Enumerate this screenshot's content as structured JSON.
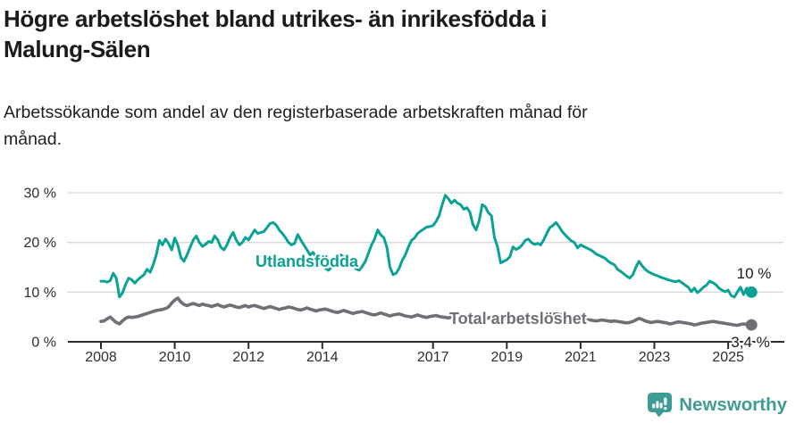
{
  "title": {
    "line1": "Högre arbetslöshet bland utrikes- än inrikesfödda i",
    "line2": "Malung-Sälen"
  },
  "subtitle": {
    "line1": "Arbetssökande som andel av den registerbaserade arbetskraften månad för",
    "line2": "månad."
  },
  "chart_data": {
    "type": "line",
    "x_unit": "month",
    "x_start_year": 2008,
    "x_end_label_period": "2025 (ends ~Aug)",
    "x_tick_years": [
      2008,
      2010,
      2012,
      2014,
      2017,
      2019,
      2021,
      2023,
      2025
    ],
    "x_tick_labels": [
      "2008",
      "2010",
      "2012",
      "2014",
      "2017",
      "2019",
      "2021",
      "2023",
      "2025"
    ],
    "y_ticks": [
      0,
      10,
      20,
      30
    ],
    "y_tick_labels": [
      "0 %",
      "10 %",
      "20 %",
      "30 %"
    ],
    "ylim": [
      0,
      31
    ],
    "grid": "horizontal",
    "legend_position": "inline-labels",
    "series": [
      {
        "name": "Utlandsfödda",
        "color": "#0ba296",
        "end_label": "10 %",
        "values": [
          12.2,
          12.2,
          12.0,
          12.3,
          13.8,
          12.8,
          9.0,
          9.8,
          11.5,
          12.8,
          12.5,
          11.8,
          12.5,
          13.0,
          13.5,
          14.6,
          14.0,
          15.5,
          17.5,
          20.4,
          19.5,
          20.7,
          19.8,
          18.5,
          20.9,
          19.5,
          17.0,
          16.2,
          17.5,
          19.0,
          20.5,
          21.3,
          20.0,
          19.2,
          19.6,
          20.2,
          20.0,
          21.3,
          20.5,
          19.0,
          18.5,
          19.5,
          21.0,
          22.0,
          20.5,
          19.5,
          20.0,
          21.0,
          20.5,
          21.5,
          22.5,
          21.8,
          22.0,
          22.2,
          23.0,
          23.8,
          24.0,
          23.5,
          22.5,
          21.8,
          21.0,
          20.0,
          19.5,
          19.8,
          21.6,
          20.5,
          19.5,
          18.5,
          17.5,
          18.0,
          17.0,
          16.0,
          15.5,
          14.8,
          14.4,
          15.0,
          16.0,
          17.0,
          17.5,
          17.0,
          16.5,
          16.0,
          15.3,
          14.7,
          14.4,
          15.2,
          16.2,
          17.8,
          19.5,
          20.7,
          22.5,
          21.5,
          21.0,
          19.0,
          15.0,
          13.5,
          13.8,
          14.8,
          16.4,
          17.5,
          19.1,
          20.4,
          20.9,
          21.8,
          22.3,
          22.7,
          23.1,
          23.2,
          23.4,
          24.2,
          25.4,
          27.6,
          29.5,
          28.8,
          27.9,
          28.5,
          27.9,
          27.6,
          26.7,
          27.0,
          26.1,
          23.6,
          22.5,
          24.3,
          27.6,
          27.2,
          26.0,
          25.4,
          21.0,
          19.1,
          15.9,
          16.2,
          16.5,
          17.1,
          19.1,
          18.6,
          18.9,
          19.5,
          20.4,
          20.7,
          20.0,
          19.6,
          19.8,
          19.5,
          20.5,
          21.8,
          23.0,
          23.4,
          24.0,
          23.2,
          22.2,
          21.5,
          20.9,
          20.3,
          20.0,
          18.9,
          19.5,
          19.2,
          18.9,
          18.6,
          18.2,
          17.7,
          17.4,
          17.1,
          16.8,
          16.2,
          15.8,
          15.5,
          14.6,
          14.2,
          13.7,
          13.2,
          12.8,
          13.5,
          15.0,
          16.2,
          15.3,
          14.6,
          14.1,
          13.8,
          13.5,
          13.3,
          13.0,
          12.8,
          12.6,
          12.4,
          12.2,
          12.1,
          12.3,
          11.9,
          11.4,
          11.0,
          10.1,
          10.8,
          9.9,
          10.4,
          11.0,
          11.4,
          12.2,
          11.9,
          11.5,
          10.8,
          10.4,
          10.1,
          10.4,
          9.3,
          9.0,
          10.0,
          11.0,
          9.5,
          10.8,
          10.0
        ]
      },
      {
        "name": "Total arbetslöshet",
        "color": "#6f6f75",
        "end_label": "3,4 %",
        "values": [
          4.1,
          4.2,
          4.6,
          5.0,
          4.4,
          3.9,
          3.6,
          4.2,
          4.7,
          5.0,
          4.9,
          5.0,
          5.1,
          5.3,
          5.5,
          5.7,
          5.9,
          6.1,
          6.3,
          6.4,
          6.5,
          6.7,
          7.0,
          7.8,
          8.4,
          8.8,
          8.0,
          7.5,
          7.3,
          7.5,
          7.7,
          7.5,
          7.3,
          7.6,
          7.4,
          7.3,
          7.1,
          7.3,
          7.5,
          7.2,
          7.0,
          7.2,
          7.4,
          7.2,
          7.0,
          6.9,
          7.1,
          7.3,
          7.0,
          7.2,
          7.3,
          7.1,
          6.9,
          6.7,
          6.9,
          7.1,
          6.9,
          6.7,
          6.5,
          6.7,
          6.8,
          7.0,
          6.9,
          6.7,
          6.5,
          6.4,
          6.6,
          6.8,
          6.6,
          6.4,
          6.2,
          6.4,
          6.5,
          6.6,
          6.4,
          6.2,
          6.0,
          5.9,
          6.1,
          6.3,
          6.1,
          5.9,
          5.7,
          5.9,
          6.0,
          6.1,
          5.9,
          5.7,
          5.5,
          5.4,
          5.6,
          5.8,
          5.6,
          5.4,
          5.2,
          5.4,
          5.5,
          5.6,
          5.4,
          5.2,
          5.1,
          5.0,
          5.2,
          5.4,
          5.2,
          5.0,
          4.9,
          5.1,
          5.2,
          5.3,
          5.1,
          5.0,
          4.9,
          4.8,
          5.0,
          5.2,
          5.0,
          4.8,
          4.7,
          4.9,
          5.0,
          5.1,
          4.9,
          4.8,
          4.7,
          4.6,
          4.8,
          5.0,
          4.8,
          4.6,
          4.5,
          4.7,
          4.8,
          4.9,
          4.7,
          4.6,
          4.5,
          4.6,
          4.8,
          5.0,
          4.9,
          4.7,
          4.6,
          4.8,
          4.9,
          5.0,
          5.2,
          5.5,
          5.6,
          5.5,
          5.3,
          5.1,
          5.0,
          4.9,
          4.8,
          4.9,
          4.7,
          4.6,
          4.5,
          4.4,
          4.3,
          4.2,
          4.3,
          4.4,
          4.3,
          4.2,
          4.1,
          4.2,
          4.1,
          4.0,
          3.9,
          3.8,
          3.9,
          4.1,
          4.4,
          4.7,
          4.5,
          4.2,
          4.0,
          3.9,
          4.0,
          4.1,
          4.0,
          3.9,
          3.8,
          3.6,
          3.7,
          3.9,
          4.0,
          3.9,
          3.8,
          3.7,
          3.6,
          3.4,
          3.5,
          3.7,
          3.8,
          3.9,
          4.0,
          4.1,
          4.0,
          3.9,
          3.8,
          3.7,
          3.6,
          3.5,
          3.4,
          3.3,
          3.5,
          3.6,
          3.5,
          3.4
        ]
      }
    ]
  },
  "colors": {
    "accent_teal": "#0ba296",
    "line_gray": "#6f6f75",
    "gridline": "#d9d9d9",
    "axis": "#2b2b2b",
    "logo_teal": "#3f9c94"
  },
  "footer": {
    "brand": "Newsworthy"
  }
}
